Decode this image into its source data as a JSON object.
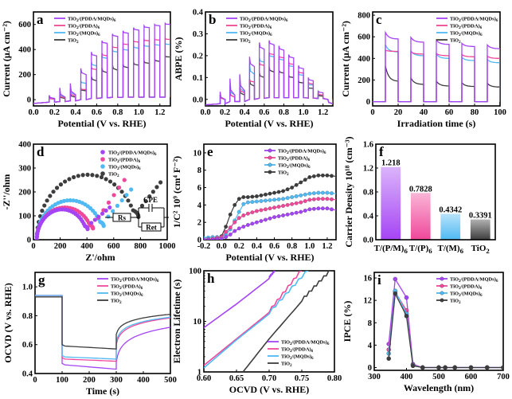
{
  "colors": {
    "TiO2/(PDDA/MQDs)6": "#a544f5",
    "TiO2/(PDDA)6": "#f0479a",
    "TiO2/(MQDs)6": "#4fb9f3",
    "Pure TiO2": "#3d3d3d"
  },
  "series_names": [
    "TiO2/(PDDA/MQDs)6",
    "TiO2/(PDDA)6",
    "TiO2/(MQDs)6",
    "Pure TiO2"
  ],
  "chart_data": [
    {
      "panel": "a",
      "type": "line",
      "title": "",
      "xlabel": "Potential (V vs. RHE)",
      "ylabel": "Current (μA cm⁻²)",
      "xlim": [
        0.0,
        1.3
      ],
      "ylim": [
        -50,
        700
      ],
      "xticks": [
        0.0,
        0.2,
        0.4,
        0.6,
        0.8,
        1.0,
        1.2
      ],
      "yticks": [
        0,
        200,
        400,
        600
      ],
      "legend": "top-left",
      "chopped": true,
      "light_on_intervals": [
        [
          0.15,
          0.2
        ],
        [
          0.25,
          0.3
        ],
        [
          0.35,
          0.4
        ],
        [
          0.45,
          0.5
        ],
        [
          0.55,
          0.6
        ],
        [
          0.65,
          0.7
        ],
        [
          0.75,
          0.8
        ],
        [
          0.85,
          0.9
        ],
        [
          0.95,
          1.0
        ],
        [
          1.05,
          1.1
        ],
        [
          1.15,
          1.2
        ],
        [
          1.25,
          1.3
        ]
      ],
      "dark_current": [
        -20,
        -15,
        -10,
        0,
        10,
        15,
        18,
        20,
        20,
        20,
        20,
        20
      ],
      "series": [
        {
          "name": "TiO2/(PDDA/MQDs)6",
          "on_peak": [
            35,
            95,
            130,
            250,
            380,
            470,
            525,
            550,
            575,
            590,
            600,
            610
          ],
          "on_end": [
            10,
            20,
            40,
            200,
            350,
            450,
            505,
            530,
            555,
            575,
            590,
            600
          ]
        },
        {
          "name": "TiO2/(PDDA)6",
          "on_peak": [
            20,
            40,
            70,
            90,
            260,
            370,
            425,
            450,
            470,
            480,
            485,
            490
          ],
          "on_end": [
            5,
            15,
            30,
            80,
            240,
            350,
            415,
            440,
            460,
            470,
            475,
            480
          ]
        },
        {
          "name": "TiO2/(MQDs)6",
          "on_peak": [
            30,
            60,
            90,
            150,
            300,
            350,
            400,
            410,
            430,
            440,
            445,
            450
          ],
          "on_end": [
            10,
            20,
            40,
            130,
            270,
            330,
            380,
            395,
            410,
            425,
            435,
            440
          ]
        },
        {
          "name": "Pure TiO2",
          "on_peak": [
            15,
            35,
            50,
            90,
            190,
            255,
            280,
            285,
            300,
            310,
            325,
            350
          ],
          "on_end": [
            5,
            10,
            20,
            70,
            150,
            215,
            235,
            255,
            275,
            290,
            305,
            340
          ]
        }
      ]
    },
    {
      "panel": "b",
      "type": "line",
      "title": "",
      "xlabel": "Potential (V vs. RHE)",
      "ylabel": "ABPE (%)",
      "xlim": [
        0.0,
        1.3
      ],
      "ylim": [
        -0.03,
        0.4
      ],
      "xticks": [
        0.0,
        0.2,
        0.4,
        0.6,
        0.8,
        1.0,
        1.2
      ],
      "yticks": [
        0.0,
        0.1,
        0.2,
        0.3,
        0.4
      ],
      "legend": "top-left",
      "chopped": true,
      "light_on_intervals": [
        [
          0.15,
          0.2
        ],
        [
          0.25,
          0.3
        ],
        [
          0.35,
          0.4
        ],
        [
          0.45,
          0.5
        ],
        [
          0.55,
          0.6
        ],
        [
          0.65,
          0.7
        ],
        [
          0.75,
          0.8
        ],
        [
          0.85,
          0.9
        ],
        [
          0.95,
          1.0
        ],
        [
          1.05,
          1.1
        ],
        [
          1.15,
          1.2
        ],
        [
          1.25,
          1.3
        ]
      ],
      "dark_value": [
        -0.02,
        -0.01,
        -0.01,
        0.0,
        0.005,
        0.008,
        0.008,
        0.008,
        0.008,
        0.006,
        0.004,
        0.0
      ],
      "series": [
        {
          "name": "TiO2/(PDDA/MQDs)6",
          "on_peak": [
            0.035,
            0.095,
            0.115,
            0.195,
            0.26,
            0.27,
            0.245,
            0.205,
            0.155,
            0.1,
            0.04,
            0.0
          ],
          "on_end": [
            0.0,
            0.02,
            0.04,
            0.15,
            0.23,
            0.25,
            0.225,
            0.19,
            0.14,
            0.085,
            0.03,
            -0.02
          ]
        },
        {
          "name": "TiO2/(PDDA)6",
          "on_peak": [
            0.02,
            0.04,
            0.06,
            0.09,
            0.17,
            0.215,
            0.2,
            0.17,
            0.13,
            0.08,
            0.03,
            0.0
          ],
          "on_end": [
            0.0,
            0.01,
            0.03,
            0.08,
            0.155,
            0.205,
            0.19,
            0.16,
            0.12,
            0.07,
            0.02,
            -0.02
          ]
        },
        {
          "name": "TiO2/(MQDs)6",
          "on_peak": [
            0.03,
            0.06,
            0.08,
            0.165,
            0.19,
            0.205,
            0.19,
            0.16,
            0.12,
            0.07,
            0.025,
            0.0
          ],
          "on_end": [
            0.0,
            0.02,
            0.035,
            0.115,
            0.17,
            0.195,
            0.18,
            0.15,
            0.11,
            0.065,
            0.02,
            -0.02
          ]
        },
        {
          "name": "Pure TiO2",
          "on_peak": [
            0.02,
            0.04,
            0.05,
            0.095,
            0.125,
            0.15,
            0.135,
            0.11,
            0.085,
            0.055,
            0.02,
            0.0
          ],
          "on_end": [
            0.0,
            0.01,
            0.02,
            0.06,
            0.1,
            0.125,
            0.12,
            0.1,
            0.075,
            0.05,
            0.015,
            -0.02
          ]
        }
      ]
    },
    {
      "panel": "c",
      "type": "line",
      "title": "",
      "xlabel": "Irradiation time (s)",
      "ylabel": "Current (μA cm⁻²)",
      "xlim": [
        0,
        100
      ],
      "ylim": [
        -40,
        830
      ],
      "xticks": [
        0,
        20,
        40,
        60,
        80,
        100
      ],
      "yticks": [
        0,
        200,
        400,
        600,
        800
      ],
      "legend": "top-right",
      "light_on_intervals": [
        [
          10,
          20
        ],
        [
          30,
          40
        ],
        [
          50,
          60
        ],
        [
          70,
          80
        ],
        [
          90,
          100
        ]
      ],
      "series": [
        {
          "name": "TiO2/(PDDA/MQDs)6",
          "on_peak": [
            640,
            595,
            570,
            540,
            525
          ],
          "on_end": [
            580,
            550,
            530,
            510,
            490
          ]
        },
        {
          "name": "TiO2/(PDDA)6",
          "on_peak": [
            475,
            460,
            445,
            435,
            420
          ],
          "on_end": [
            465,
            440,
            425,
            415,
            400
          ]
        },
        {
          "name": "TiO2/(MQDs)6",
          "on_peak": [
            525,
            470,
            440,
            410,
            390
          ],
          "on_end": [
            460,
            425,
            400,
            380,
            360
          ]
        },
        {
          "name": "Pure TiO2",
          "on_peak": [
            330,
            220,
            190,
            175,
            170
          ],
          "on_end": [
            190,
            160,
            145,
            140,
            135
          ]
        }
      ]
    },
    {
      "panel": "d",
      "type": "scatter",
      "title": "",
      "xlabel": "Z'/ohm",
      "ylabel": "-Z''/ohm",
      "xlim": [
        0,
        1000
      ],
      "ylim": [
        0,
        400
      ],
      "xticks": [
        0,
        200,
        400,
        600,
        800,
        1000
      ],
      "yticks": [
        0,
        100,
        200,
        300,
        400
      ],
      "legend": "top-right",
      "inset_circuit": {
        "components": [
          "Rs",
          "CPE",
          "Ret"
        ]
      },
      "series": [
        {
          "name": "TiO2/(PDDA/MQDs)6",
          "arc_diameter": 380,
          "arc_start": 25,
          "arc_peak": 127,
          "tail_end": [
            570,
            135
          ]
        },
        {
          "name": "TiO2/(PDDA)6",
          "arc_diameter": 420,
          "arc_start": 25,
          "arc_peak": 135,
          "tail_end": [
            680,
            250
          ]
        },
        {
          "name": "TiO2/(MQDs)6",
          "arc_diameter": 500,
          "arc_start": 25,
          "arc_peak": 165,
          "tail_end": [
            730,
            210
          ]
        },
        {
          "name": "Pure TiO2",
          "arc_diameter": 760,
          "arc_start": 25,
          "arc_peak": 272,
          "tail_end": [
            950,
            240
          ]
        }
      ]
    },
    {
      "panel": "e",
      "type": "line",
      "title": "",
      "xlabel": "Potential (V vs. RHE)",
      "ylabel": "1/C² 10⁹ (cm⁴ F⁻²)",
      "xlim": [
        -0.2,
        1.3
      ],
      "ylim": [
        0,
        11
      ],
      "xticks": [
        -0.2,
        0.0,
        0.2,
        0.4,
        0.6,
        0.8,
        1.0,
        1.2
      ],
      "yticks": [
        0,
        2,
        4,
        6,
        8,
        10
      ],
      "legend": "top-right",
      "x": [
        -0.2,
        -0.1,
        0.0,
        0.05,
        0.1,
        0.15,
        0.2,
        0.25,
        0.3,
        0.4,
        0.5,
        0.6,
        0.7,
        0.8,
        0.9,
        1.0,
        1.1,
        1.2,
        1.3
      ],
      "series": [
        {
          "name": "TiO2/(PDDA/MQDs)6",
          "values": [
            0.0,
            0.0,
            0.1,
            0.3,
            0.6,
            1.0,
            1.3,
            1.5,
            1.7,
            2.0,
            2.3,
            2.6,
            2.8,
            3.0,
            3.2,
            3.5,
            3.6,
            3.6,
            3.4
          ]
        },
        {
          "name": "TiO2/(PDDA)6",
          "values": [
            0.0,
            0.1,
            0.3,
            0.9,
            1.4,
            2.0,
            2.5,
            2.8,
            3.0,
            3.3,
            3.5,
            3.7,
            3.9,
            4.1,
            4.3,
            4.6,
            4.7,
            4.7,
            4.6
          ]
        },
        {
          "name": "TiO2/(MQDs)6",
          "values": [
            0.2,
            0.3,
            0.3,
            0.6,
            1.2,
            2.2,
            3.2,
            4.1,
            4.3,
            4.4,
            4.5,
            4.6,
            4.7,
            4.9,
            5.1,
            5.3,
            5.4,
            5.4,
            5.3
          ]
        },
        {
          "name": "Pure TiO2",
          "values": [
            0.0,
            0.0,
            0.4,
            1.5,
            2.9,
            4.0,
            4.7,
            4.9,
            4.9,
            5.0,
            5.2,
            5.4,
            5.6,
            6.0,
            6.6,
            7.2,
            7.4,
            7.4,
            7.3
          ]
        }
      ]
    },
    {
      "panel": "f",
      "type": "bar",
      "title": "",
      "xlabel": "",
      "ylabel": "Carrier Density 10¹⁸ (cm⁻³)",
      "categories": [
        "T/(P/M)6",
        "T/(P)6",
        "T/(M)6",
        "TiO2"
      ],
      "values": [
        1.218,
        0.7828,
        0.4342,
        0.3391
      ],
      "value_labels": [
        "1.218",
        "0.7828",
        "0.4342",
        "0.3391"
      ],
      "ylim": [
        0.0,
        1.6
      ],
      "yticks": [
        0.0,
        0.4,
        0.8,
        1.2,
        1.6
      ],
      "bar_colors": [
        "#a544f5",
        "#f0479a",
        "#4fb9f3",
        "#3d3d3d"
      ]
    },
    {
      "panel": "g",
      "type": "line",
      "title": "",
      "xlabel": "Time (s)",
      "ylabel": "OCVD (V vs. RHE)",
      "xlim": [
        0,
        500
      ],
      "ylim": [
        0.4,
        1.1
      ],
      "xticks": [
        0,
        100,
        200,
        300,
        400,
        500
      ],
      "yticks": [
        0.4,
        0.6,
        0.8,
        1.0
      ],
      "legend": "top-right",
      "dark_level": 0.94,
      "light_on_interval": [
        100,
        300
      ],
      "series": [
        {
          "name": "TiO2/(PDDA/MQDs)6",
          "light_start": 0.46,
          "light_end": 0.43,
          "recovery_start": 0.48,
          "recovery_end": 0.72
        },
        {
          "name": "TiO2/(PDDA)6",
          "light_start": 0.5,
          "light_end": 0.485,
          "recovery_start": 0.6,
          "recovery_end": 0.785
        },
        {
          "name": "TiO2/(MQDs)6",
          "light_start": 0.515,
          "light_end": 0.5,
          "recovery_start": 0.62,
          "recovery_end": 0.79
        },
        {
          "name": "Pure TiO2",
          "light_start": 0.59,
          "light_end": 0.57,
          "recovery_start": 0.67,
          "recovery_end": 0.81
        }
      ]
    },
    {
      "panel": "h",
      "type": "line",
      "title": "",
      "xlabel": "OCVD (V vs. RHE)",
      "ylabel": "Electron Lifetime (s)",
      "xlim": [
        0.6,
        0.8
      ],
      "ylim": [
        1,
        100
      ],
      "yscale": "log",
      "xticks": [
        0.6,
        0.65,
        0.7,
        0.75,
        0.8
      ],
      "yticks": [
        1,
        10,
        100
      ],
      "legend": "bottom-right",
      "series": [
        {
          "name": "TiO2/(PDDA/MQDs)6",
          "x": [
            0.6,
            0.65,
            0.7,
            0.71
          ],
          "values": [
            7.5,
            22,
            70,
            100
          ]
        },
        {
          "name": "TiO2/(PDDA)6",
          "x": [
            0.6,
            0.65,
            0.7,
            0.75
          ],
          "values": [
            1.35,
            4.5,
            15,
            100
          ]
        },
        {
          "name": "TiO2/(MQDs)6",
          "x": [
            0.6,
            0.65,
            0.7,
            0.76
          ],
          "values": [
            1.2,
            4.3,
            14,
            100
          ]
        },
        {
          "name": "Pure TiO2",
          "x": [
            0.66,
            0.7,
            0.75,
            0.795
          ],
          "values": [
            1.0,
            4.5,
            25,
            100
          ]
        }
      ]
    },
    {
      "panel": "i",
      "type": "line",
      "title": "",
      "xlabel": "Wavelength (nm)",
      "ylabel": "IPCE (%)",
      "xlim": [
        300,
        700
      ],
      "ylim": [
        -0.5,
        17
      ],
      "xticks": [
        300,
        400,
        500,
        600,
        700
      ],
      "yticks": [
        0,
        4,
        8,
        12,
        16
      ],
      "legend": "top-right",
      "x": [
        345,
        365,
        400,
        420,
        450,
        500,
        520,
        550,
        600,
        650,
        700
      ],
      "series": [
        {
          "name": "TiO2/(PDDA/MQDs)6",
          "values": [
            4.2,
            15.8,
            12.5,
            0.6,
            0.0,
            0.0,
            0.0,
            0.0,
            0.0,
            0.0,
            0.0
          ]
        },
        {
          "name": "TiO2/(PDDA)6",
          "values": [
            3.2,
            13.5,
            10.2,
            0.5,
            0.0,
            0.0,
            0.0,
            0.0,
            0.0,
            0.0,
            0.0
          ]
        },
        {
          "name": "TiO2/(MQDs)6",
          "values": [
            2.5,
            13.7,
            9.6,
            0.4,
            0.0,
            0.0,
            0.0,
            0.0,
            0.0,
            0.0,
            0.0
          ]
        },
        {
          "name": "Pure TiO2",
          "values": [
            1.6,
            13.2,
            9.2,
            0.3,
            0.0,
            0.0,
            0.0,
            0.0,
            0.0,
            0.0,
            0.0
          ]
        }
      ]
    }
  ]
}
